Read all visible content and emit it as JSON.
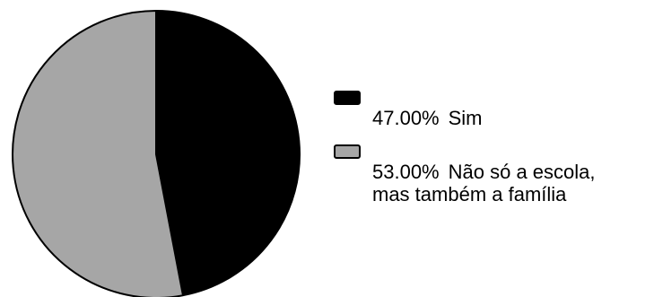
{
  "chart_data": {
    "type": "pie",
    "title": "",
    "slices": [
      {
        "label": "Sim",
        "value": 47.0,
        "value_text": "47.00%",
        "color": "#000000"
      },
      {
        "label": "Não só a escola, mas também a família",
        "value": 53.0,
        "value_text": "53.00%",
        "color": "#a6a6a6"
      }
    ],
    "legend_placement": "right",
    "start_angle_deg": 0,
    "direction": "clockwise"
  },
  "legend": {
    "items": [
      {
        "pct": "47.00%",
        "line1": "Sim",
        "line2": ""
      },
      {
        "pct": "53.00%",
        "line1": "Não só a escola,",
        "line2": "mas também a família"
      }
    ]
  }
}
